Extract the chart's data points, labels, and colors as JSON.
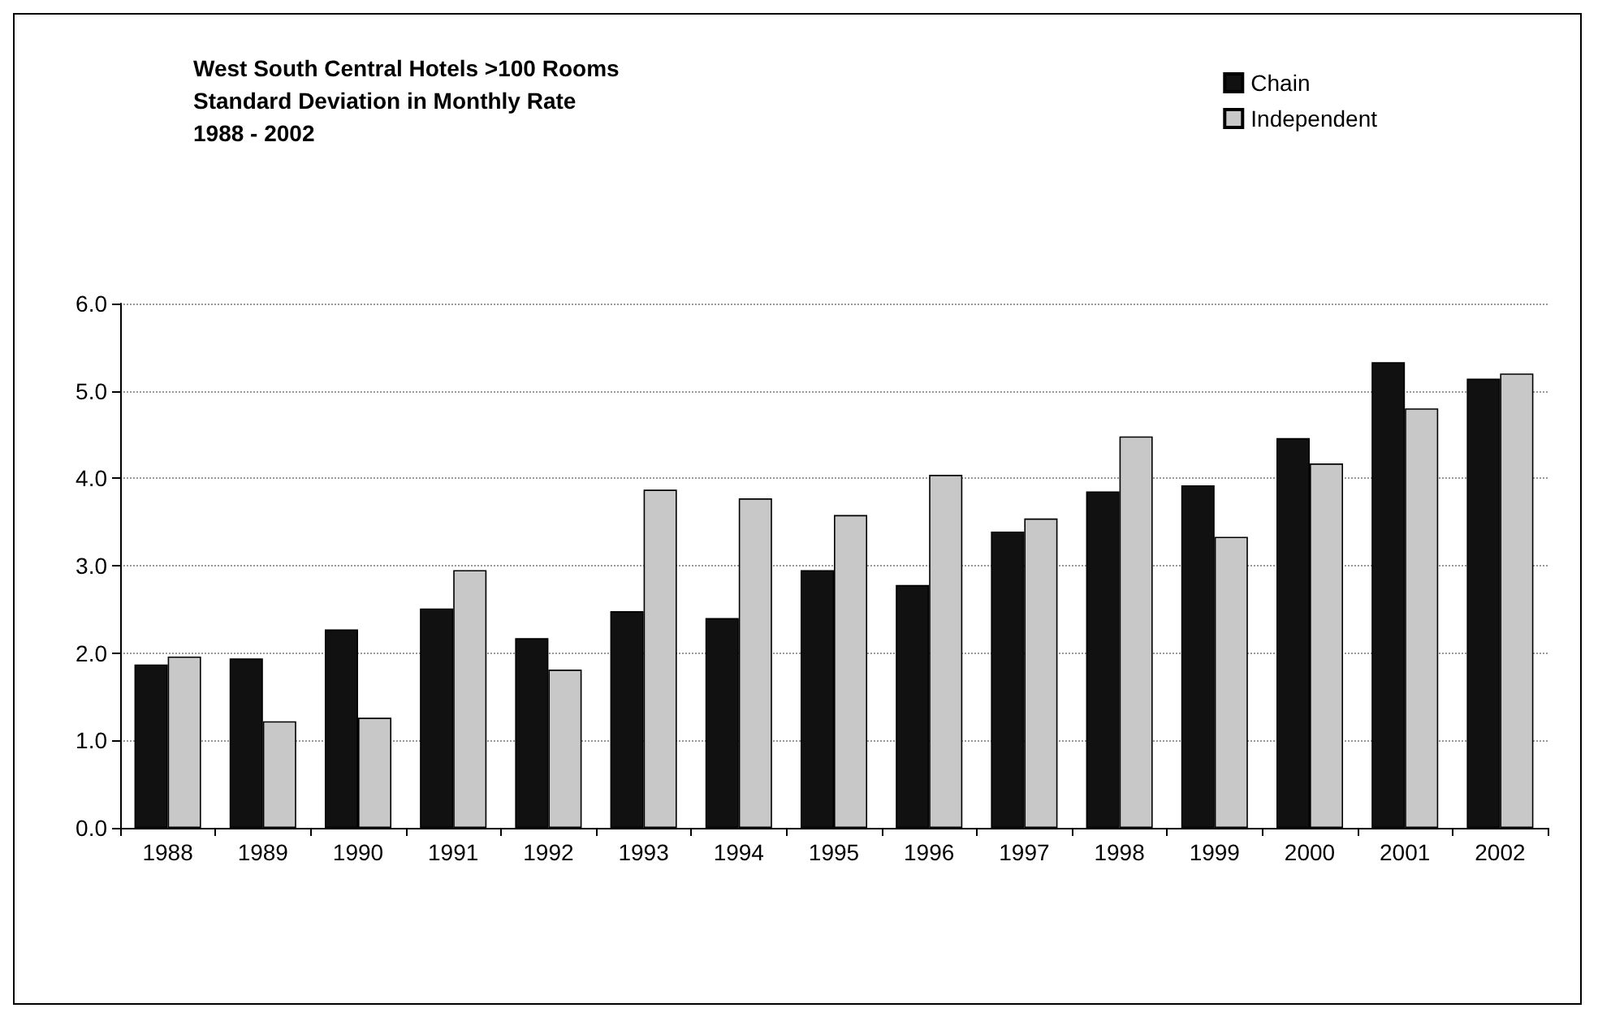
{
  "chart_data": {
    "type": "bar",
    "title": "West South Central Hotels >100 Rooms\nStandard Deviation in Monthly Rate\n1988 - 2002",
    "categories": [
      "1988",
      "1989",
      "1990",
      "1991",
      "1992",
      "1993",
      "1994",
      "1995",
      "1996",
      "1997",
      "1998",
      "1999",
      "2000",
      "2001",
      "2002"
    ],
    "series": [
      {
        "name": "Chain",
        "color": "#111111",
        "values": [
          1.87,
          1.94,
          2.27,
          2.51,
          2.17,
          2.48,
          2.4,
          2.95,
          2.78,
          3.39,
          3.85,
          3.92,
          4.46,
          5.33,
          5.14
        ]
      },
      {
        "name": "Independent",
        "color": "#c8c8c8",
        "values": [
          1.96,
          1.22,
          1.26,
          2.95,
          1.81,
          3.87,
          3.77,
          3.58,
          4.04,
          3.54,
          4.48,
          3.33,
          4.17,
          4.8,
          5.2
        ]
      }
    ],
    "ylim": [
      0,
      6
    ],
    "yticks": [
      {
        "value": 0,
        "label": "0.0"
      },
      {
        "value": 1,
        "label": "1.0"
      },
      {
        "value": 2,
        "label": "2.0"
      },
      {
        "value": 3,
        "label": "3.0"
      },
      {
        "value": 4,
        "label": "4.0"
      },
      {
        "value": 5,
        "label": "5.0"
      },
      {
        "value": 6,
        "label": "6.0"
      }
    ],
    "grid": "y",
    "legend": "top right"
  }
}
